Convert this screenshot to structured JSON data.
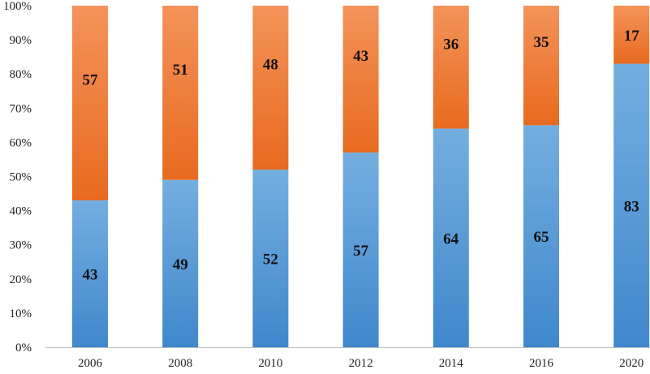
{
  "chart_data": {
    "type": "bar",
    "stacked": true,
    "percent_stacked": true,
    "title": "",
    "xlabel": "",
    "ylabel": "",
    "categories": [
      "2006",
      "2008",
      "2010",
      "2012",
      "2014",
      "2016",
      "2020"
    ],
    "series": [
      {
        "values": [
          43,
          49,
          52,
          57,
          64,
          65,
          83
        ],
        "color": "#5b9bd5"
      },
      {
        "values": [
          57,
          51,
          48,
          43,
          36,
          35,
          17
        ],
        "color": "#ed7d31"
      }
    ],
    "y_ticks": [
      "0%",
      "10%",
      "20%",
      "30%",
      "40%",
      "50%",
      "60%",
      "70%",
      "80%",
      "90%",
      "100%"
    ],
    "ylim": [
      0,
      100
    ],
    "grid": false,
    "legend": "none",
    "data_labels": true
  }
}
